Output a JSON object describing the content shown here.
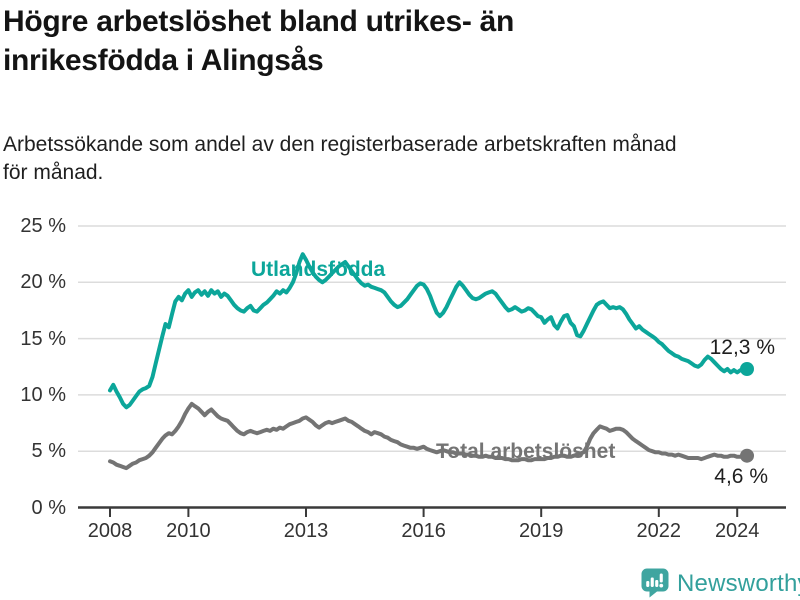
{
  "title_line1": "Högre arbetslöshet bland utrikes- än",
  "title_line2": "inrikesfödda i Alingsås",
  "subtitle_line1": "Arbetssökande som andel av den registerbaserade arbetskraften månad",
  "subtitle_line2": "för månad.",
  "colors": {
    "teal": "#0ca69a",
    "gray": "#747474",
    "grid": "#dcdcdc",
    "axis": "#3a3a3a",
    "logo_teal": "#3fa5a0",
    "text_dark": "#1f1f1f"
  },
  "chart_data": {
    "type": "line",
    "title": "Högre arbetslöshet bland utrikes- än inrikesfödda i Alingsås",
    "subtitle": "Arbetssökande som andel av den registerbaserade arbetskraften månad för månad.",
    "x_unit": "month",
    "x_start": "2008-01",
    "x_end": "2024-04",
    "ylim": [
      0,
      25
    ],
    "grid": true,
    "y_ticks": [
      {
        "value": 0,
        "label": "0 %"
      },
      {
        "value": 5,
        "label": "5 %"
      },
      {
        "value": 10,
        "label": "10 %"
      },
      {
        "value": 15,
        "label": "15 %"
      },
      {
        "value": 20,
        "label": "20 %"
      },
      {
        "value": 25,
        "label": "25 %"
      }
    ],
    "x_ticks": [
      {
        "year": 2008,
        "label": "2008"
      },
      {
        "year": 2010,
        "label": "2010"
      },
      {
        "year": 2013,
        "label": "2013"
      },
      {
        "year": 2016,
        "label": "2016"
      },
      {
        "year": 2019,
        "label": "2019"
      },
      {
        "year": 2022,
        "label": "2022"
      },
      {
        "year": 2024,
        "label": "2024"
      }
    ],
    "series": [
      {
        "name": "Utlandsfödda",
        "color": "#0ca69a",
        "end_label": "12,3 %",
        "end_value": 12.3,
        "values": [
          10.4,
          10.9,
          10.3,
          9.8,
          9.2,
          8.9,
          9.1,
          9.5,
          9.9,
          10.3,
          10.5,
          10.6,
          10.8,
          11.6,
          12.8,
          14.0,
          15.2,
          16.3,
          16.0,
          17.2,
          18.3,
          18.7,
          18.4,
          19.0,
          19.3,
          18.7,
          19.1,
          19.3,
          18.9,
          19.2,
          18.8,
          19.3,
          19.0,
          19.2,
          18.7,
          19.0,
          18.8,
          18.4,
          18.0,
          17.7,
          17.5,
          17.4,
          17.7,
          17.9,
          17.5,
          17.4,
          17.7,
          18.0,
          18.2,
          18.5,
          18.8,
          19.2,
          19.0,
          19.3,
          19.1,
          19.5,
          20.0,
          20.8,
          21.8,
          22.5,
          22.0,
          21.4,
          20.9,
          20.5,
          20.2,
          20.0,
          20.2,
          20.5,
          20.8,
          21.1,
          21.4,
          21.6,
          21.8,
          21.4,
          21.0,
          20.6,
          20.2,
          19.9,
          19.7,
          19.8,
          19.6,
          19.5,
          19.4,
          19.3,
          19.1,
          18.7,
          18.3,
          18.0,
          17.8,
          17.9,
          18.2,
          18.5,
          18.9,
          19.3,
          19.7,
          19.9,
          19.8,
          19.4,
          18.8,
          18.0,
          17.3,
          17.0,
          17.3,
          17.8,
          18.4,
          19.0,
          19.6,
          20.0,
          19.7,
          19.3,
          18.9,
          18.6,
          18.5,
          18.6,
          18.8,
          19.0,
          19.1,
          19.2,
          19.0,
          18.6,
          18.2,
          17.8,
          17.5,
          17.6,
          17.8,
          17.6,
          17.4,
          17.5,
          17.7,
          17.6,
          17.3,
          17.0,
          16.9,
          16.4,
          16.7,
          16.9,
          16.2,
          15.9,
          16.5,
          17.0,
          17.1,
          16.4,
          16.1,
          15.3,
          15.2,
          15.7,
          16.3,
          16.9,
          17.5,
          18.0,
          18.2,
          18.3,
          18.0,
          17.7,
          17.8,
          17.7,
          17.8,
          17.6,
          17.2,
          16.7,
          16.3,
          15.9,
          16.1,
          15.8,
          15.6,
          15.4,
          15.2,
          15.0,
          14.7,
          14.5,
          14.2,
          13.9,
          13.7,
          13.5,
          13.4,
          13.2,
          13.1,
          13.0,
          12.8,
          12.6,
          12.5,
          12.7,
          13.1,
          13.4,
          13.2,
          12.9,
          12.6,
          12.3,
          12.1,
          12.3,
          12.0,
          12.2,
          12.0,
          12.2,
          12.1,
          12.3
        ]
      },
      {
        "name": "Total arbetslöshet",
        "color": "#747474",
        "end_label": "4,6 %",
        "end_value": 4.6,
        "values": [
          4.1,
          4.0,
          3.8,
          3.7,
          3.6,
          3.5,
          3.7,
          3.9,
          4.0,
          4.2,
          4.3,
          4.4,
          4.6,
          4.9,
          5.3,
          5.7,
          6.1,
          6.4,
          6.6,
          6.5,
          6.8,
          7.2,
          7.7,
          8.3,
          8.8,
          9.2,
          9.0,
          8.8,
          8.5,
          8.2,
          8.5,
          8.7,
          8.4,
          8.1,
          7.9,
          7.8,
          7.7,
          7.4,
          7.1,
          6.8,
          6.6,
          6.5,
          6.7,
          6.8,
          6.7,
          6.6,
          6.7,
          6.8,
          6.9,
          6.8,
          7.0,
          6.9,
          7.1,
          7.0,
          7.2,
          7.4,
          7.5,
          7.6,
          7.7,
          7.9,
          8.0,
          7.8,
          7.6,
          7.3,
          7.1,
          7.3,
          7.5,
          7.6,
          7.5,
          7.6,
          7.7,
          7.8,
          7.9,
          7.7,
          7.6,
          7.4,
          7.2,
          7.0,
          6.8,
          6.7,
          6.5,
          6.7,
          6.6,
          6.5,
          6.3,
          6.2,
          6.0,
          5.9,
          5.8,
          5.6,
          5.5,
          5.4,
          5.3,
          5.3,
          5.2,
          5.3,
          5.4,
          5.2,
          5.1,
          5.0,
          4.9,
          5.0,
          5.1,
          5.0,
          4.9,
          4.9,
          4.8,
          4.8,
          4.8,
          4.7,
          4.7,
          4.6,
          4.6,
          4.5,
          4.5,
          4.6,
          4.5,
          4.5,
          4.4,
          4.4,
          4.4,
          4.3,
          4.3,
          4.2,
          4.2,
          4.2,
          4.3,
          4.3,
          4.2,
          4.2,
          4.3,
          4.3,
          4.3,
          4.3,
          4.4,
          4.4,
          4.5,
          4.5,
          4.6,
          4.6,
          4.5,
          4.5,
          4.6,
          4.7,
          4.8,
          4.9,
          5.4,
          6.1,
          6.6,
          6.9,
          7.2,
          7.1,
          7.0,
          6.8,
          6.9,
          7.0,
          7.0,
          6.9,
          6.7,
          6.4,
          6.1,
          5.9,
          5.7,
          5.5,
          5.3,
          5.1,
          5.0,
          4.9,
          4.9,
          4.8,
          4.8,
          4.7,
          4.7,
          4.6,
          4.7,
          4.6,
          4.5,
          4.4,
          4.4,
          4.4,
          4.4,
          4.3,
          4.4,
          4.5,
          4.6,
          4.7,
          4.6,
          4.6,
          4.5,
          4.5,
          4.6,
          4.6,
          4.5,
          4.5,
          4.6,
          4.6
        ]
      }
    ]
  },
  "branding": {
    "logo_text": "Newsworthy"
  }
}
